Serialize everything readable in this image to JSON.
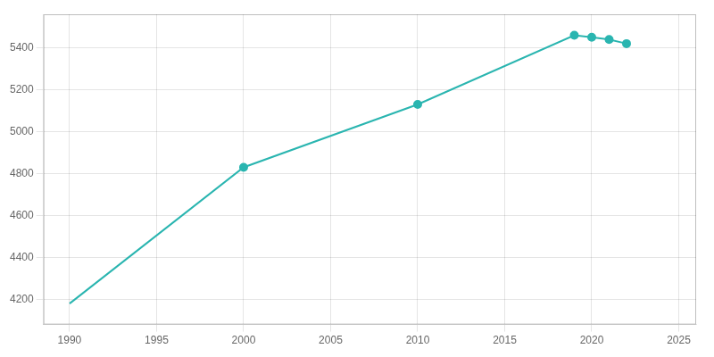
{
  "chart_data": {
    "type": "line",
    "x": [
      1990,
      2000,
      2010,
      2019,
      2020,
      2021,
      2022
    ],
    "series": [
      {
        "color": "#2ab5b0",
        "values": [
          4180,
          4830,
          5130,
          5460,
          5450,
          5440,
          5420
        ],
        "marker": "none",
        "line_style": "solid"
      },
      {
        "color": "#2ab5b0",
        "values": [
          null,
          4830,
          5130,
          5460,
          5450,
          5440,
          5420
        ],
        "marker": "circle",
        "line_style": "none"
      }
    ],
    "xlim": [
      1988.5,
      2026
    ],
    "ylim": [
      4080,
      5560
    ],
    "xticks": [
      1990,
      1995,
      2000,
      2005,
      2010,
      2015,
      2020,
      2025
    ],
    "yticks": [
      4200,
      4400,
      4600,
      4800,
      5000,
      5200,
      5400
    ],
    "grid": true
  }
}
